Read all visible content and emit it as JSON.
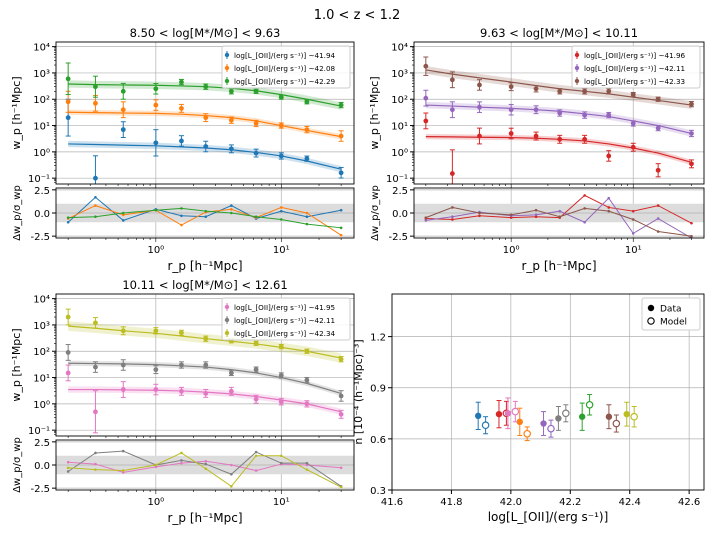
{
  "suptitle": "1.0 < z < 1.2",
  "chart_data": [
    {
      "type": "scatter",
      "title": "8.50 < log[M*/M⊙] < 9.63",
      "xlabel": "r_p [h⁻¹Mpc]",
      "ylabel": "w_p [h⁻¹Mpc]",
      "resid_ylabel": "Δw_p/σ_wp",
      "xscale": "log",
      "yscale": "log",
      "xlim": [
        0.16,
        38
      ],
      "ylim": [
        0.06,
        15000
      ],
      "resid_ylim": [
        -2.7,
        2.7
      ],
      "resid_ticks": [
        -2.5,
        0.0,
        2.5
      ],
      "ytick_labels": [
        "10⁻¹",
        "10⁰",
        "10¹",
        "10²",
        "10³",
        "10⁴"
      ],
      "xtick_labels": [
        "10⁰",
        "10¹"
      ],
      "series": [
        {
          "name": "log[L_[OII]/(erg s⁻¹)] ~41.94",
          "color": "#1f77b4",
          "x": [
            0.2,
            0.33,
            0.55,
            1.0,
            1.6,
            2.5,
            4.0,
            6.3,
            10.0,
            16.0,
            30.0
          ],
          "y": [
            20,
            0.1,
            7,
            2.2,
            2.6,
            1.6,
            1.3,
            0.9,
            0.7,
            0.55,
            0.16
          ],
          "err": [
            0.7,
            0.85,
            0.3,
            0.5,
            0.2,
            0.2,
            0.15,
            0.15,
            0.12,
            0.1,
            0.2
          ],
          "model": [
            2.0,
            1.9,
            1.8,
            1.7,
            1.55,
            1.4,
            1.2,
            0.95,
            0.7,
            0.45,
            0.22
          ],
          "band": 0.12,
          "resid": [
            -1.0,
            1.7,
            -0.8,
            0.4,
            -0.3,
            -0.4,
            0.8,
            -0.6,
            0.2,
            -0.4,
            0.3
          ]
        },
        {
          "name": "log[L_[OII]/(erg s⁻¹)] ~42.08",
          "color": "#ff7f0e",
          "x": [
            0.2,
            0.33,
            0.55,
            1.0,
            1.6,
            2.5,
            4.0,
            6.3,
            10.0,
            16.0,
            30.0
          ],
          "y": [
            80,
            70,
            40,
            60,
            45,
            20,
            16,
            12,
            10,
            7,
            4
          ],
          "err": [
            0.4,
            0.3,
            0.3,
            0.2,
            0.15,
            0.15,
            0.12,
            0.12,
            0.1,
            0.12,
            0.2
          ],
          "model": [
            32,
            31,
            30,
            29,
            27,
            24,
            20,
            15,
            10,
            6.5,
            3.8
          ],
          "band": 0.1,
          "resid": [
            -0.6,
            0.8,
            -0.2,
            0.3,
            -1.3,
            0.1,
            0.4,
            -0.5,
            0.6,
            0.0,
            -2.4
          ]
        },
        {
          "name": "log[L_[OII]/(erg s⁻¹)] ~42.29",
          "color": "#2ca02c",
          "x": [
            0.2,
            0.33,
            0.55,
            1.0,
            1.6,
            2.5,
            4.0,
            6.3,
            10.0,
            16.0,
            30.0
          ],
          "y": [
            600,
            300,
            200,
            250,
            450,
            300,
            200,
            200,
            120,
            80,
            60
          ],
          "err": [
            0.6,
            0.4,
            0.3,
            0.2,
            0.1,
            0.1,
            0.1,
            0.08,
            0.08,
            0.08,
            0.1
          ],
          "model": [
            380,
            360,
            350,
            340,
            320,
            300,
            260,
            210,
            150,
            100,
            55
          ],
          "band": 0.14,
          "resid": [
            -0.5,
            -0.4,
            0.0,
            0.3,
            0.5,
            0.2,
            0.0,
            -0.4,
            -0.7,
            -1.2,
            -1.6
          ]
        }
      ]
    },
    {
      "type": "scatter",
      "title": "9.63 < log[M*/M⊙] < 10.11",
      "xlabel": "r_p [h⁻¹Mpc]",
      "ylabel": "w_p [h⁻¹Mpc]",
      "resid_ylabel": "Δw_p/σ_wp",
      "xscale": "log",
      "yscale": "log",
      "xlim": [
        0.16,
        38
      ],
      "ylim": [
        0.06,
        15000
      ],
      "resid_ylim": [
        -2.7,
        2.7
      ],
      "resid_ticks": [
        -2.5,
        0.0,
        2.5
      ],
      "ytick_labels": [
        "10⁻¹",
        "10⁰",
        "10¹",
        "10²",
        "10³",
        "10⁴"
      ],
      "xtick_labels": [
        "10⁰",
        "10¹"
      ],
      "series": [
        {
          "name": "log[L_[OII]/(erg s⁻¹)] ~41.96",
          "color": "#d62728",
          "x": [
            0.2,
            0.33,
            0.55,
            1.0,
            1.6,
            2.5,
            4.0,
            6.3,
            10.0,
            16.0,
            30.0
          ],
          "y": [
            15,
            0.15,
            4,
            5,
            4,
            3,
            3,
            0.7,
            1.5,
            0.2,
            0.35
          ],
          "err": [
            0.3,
            0.9,
            0.3,
            0.2,
            0.15,
            0.15,
            0.15,
            0.2,
            0.15,
            0.25,
            0.15
          ],
          "model": [
            3.8,
            3.7,
            3.6,
            3.5,
            3.3,
            3.0,
            2.6,
            2.0,
            1.4,
            0.9,
            0.4
          ],
          "band": 0.1,
          "resid": [
            -0.6,
            -0.7,
            -0.3,
            -0.5,
            -0.4,
            -0.5,
            1.9,
            0.6,
            0.2,
            0.8,
            -1.1
          ]
        },
        {
          "name": "log[L_[OII]/(erg s⁻¹)] ~42.11",
          "color": "#9467bd",
          "x": [
            0.2,
            0.33,
            0.55,
            1.0,
            1.6,
            2.5,
            4.0,
            6.3,
            10.0,
            16.0,
            30.0
          ],
          "y": [
            110,
            40,
            50,
            40,
            40,
            30,
            25,
            25,
            12,
            8,
            5
          ],
          "err": [
            0.3,
            0.3,
            0.2,
            0.2,
            0.15,
            0.12,
            0.12,
            0.1,
            0.1,
            0.1,
            0.12
          ],
          "model": [
            60,
            55,
            50,
            45,
            40,
            35,
            28,
            22,
            15,
            10,
            5
          ],
          "band": 0.12,
          "resid": [
            -0.8,
            -0.4,
            0.1,
            -0.3,
            -0.2,
            0.2,
            -1.0,
            1.6,
            -2.2,
            -0.6,
            -2.7
          ]
        },
        {
          "name": "log[L_[OII]/(erg s⁻¹)] ~42.33",
          "color": "#8c564b",
          "x": [
            0.2,
            0.33,
            0.55,
            1.0,
            1.6,
            2.5,
            4.0,
            6.3,
            10.0,
            16.0,
            30.0
          ],
          "y": [
            1800,
            550,
            350,
            300,
            250,
            200,
            200,
            200,
            150,
            100,
            65
          ],
          "err": [
            0.35,
            0.3,
            0.2,
            0.15,
            0.12,
            0.1,
            0.1,
            0.1,
            0.08,
            0.08,
            0.1
          ],
          "model": [
            1300,
            900,
            650,
            450,
            330,
            250,
            200,
            160,
            120,
            90,
            60
          ],
          "band": 0.15,
          "resid": [
            -0.5,
            0.6,
            0.0,
            -0.2,
            0.3,
            -0.4,
            0.5,
            0.2,
            -0.7,
            -2.0,
            -2.5
          ]
        }
      ]
    },
    {
      "type": "scatter",
      "title": "10.11 < log[M*/M⊙] < 12.61",
      "xlabel": "r_p [h⁻¹Mpc]",
      "ylabel": "w_p [h⁻¹Mpc]",
      "resid_ylabel": "Δw_p/σ_wp",
      "xscale": "log",
      "yscale": "log",
      "xlim": [
        0.16,
        38
      ],
      "ylim": [
        0.06,
        15000
      ],
      "resid_ylim": [
        -2.7,
        2.7
      ],
      "resid_ticks": [
        -2.5,
        0.0,
        2.5
      ],
      "ytick_labels": [
        "10⁻¹",
        "10⁰",
        "10¹",
        "10²",
        "10³",
        "10⁴"
      ],
      "xtick_labels": [
        "10⁰",
        "10¹"
      ],
      "series": [
        {
          "name": "log[L_[OII]/(erg s⁻¹)] ~41.95",
          "color": "#e377c2",
          "x": [
            0.2,
            0.33,
            0.55,
            1.0,
            1.6,
            2.5,
            4.0,
            6.3,
            10.0,
            16.0,
            30.0
          ],
          "y": [
            15,
            0.5,
            3.5,
            3.5,
            3.0,
            2.5,
            3.0,
            1.5,
            1.2,
            1.0,
            0.4
          ],
          "err": [
            0.3,
            0.8,
            0.3,
            0.2,
            0.15,
            0.15,
            0.15,
            0.15,
            0.12,
            0.12,
            0.15
          ],
          "model": [
            3.5,
            3.5,
            3.4,
            3.3,
            3.1,
            2.8,
            2.4,
            1.9,
            1.4,
            1.0,
            0.5
          ],
          "band": 0.12,
          "resid": [
            0.3,
            0.1,
            -0.8,
            -0.2,
            0.2,
            0.4,
            0.0,
            -0.6,
            0.1,
            0.0,
            -0.3
          ]
        },
        {
          "name": "log[L_[OII]/(erg s⁻¹)] ~42.11",
          "color": "#7f7f7f",
          "x": [
            0.2,
            0.33,
            0.55,
            1.0,
            1.6,
            2.5,
            4.0,
            6.3,
            10.0,
            16.0,
            30.0
          ],
          "y": [
            90,
            25,
            30,
            20,
            30,
            30,
            15,
            20,
            12,
            8,
            2
          ],
          "err": [
            0.3,
            0.2,
            0.2,
            0.15,
            0.12,
            0.12,
            0.1,
            0.1,
            0.1,
            0.1,
            0.2
          ],
          "model": [
            35,
            34,
            33,
            31,
            28,
            25,
            20,
            15,
            10,
            6,
            2.5
          ],
          "band": 0.1,
          "resid": [
            -0.7,
            1.3,
            1.5,
            0.0,
            0.5,
            0.1,
            -1.0,
            1.4,
            0.2,
            0.2,
            -2.3
          ]
        },
        {
          "name": "log[L_[OII]/(erg s⁻¹)] ~42.34",
          "color": "#bcbd22",
          "x": [
            0.2,
            0.33,
            0.55,
            1.0,
            1.6,
            2.5,
            4.0,
            6.3,
            10.0,
            16.0,
            30.0
          ],
          "y": [
            2000,
            1200,
            600,
            600,
            500,
            300,
            250,
            200,
            150,
            100,
            50
          ],
          "err": [
            0.3,
            0.2,
            0.15,
            0.12,
            0.1,
            0.1,
            0.08,
            0.08,
            0.08,
            0.08,
            0.1
          ],
          "model": [
            900,
            750,
            600,
            480,
            380,
            300,
            240,
            190,
            140,
            100,
            55
          ],
          "band": 0.18,
          "resid": [
            -0.3,
            -0.5,
            -0.6,
            0.0,
            1.3,
            -0.4,
            -2.3,
            1.0,
            1.0,
            -0.5,
            -2.4
          ]
        }
      ]
    },
    {
      "type": "scatter",
      "title": "",
      "xlabel": "log[L_[OII]/(erg s⁻¹)]",
      "ylabel": "n [10⁻⁴ (h⁻¹Mpc)⁻³]",
      "xlim": [
        41.6,
        42.65
      ],
      "ylim": [
        0.3,
        1.45
      ],
      "xticks": [
        41.6,
        41.8,
        42.0,
        42.2,
        42.4,
        42.6
      ],
      "yticks": [
        0.3,
        0.6,
        0.9,
        1.2
      ],
      "legend": [
        {
          "label": "Data",
          "marker": "filled"
        },
        {
          "label": "Model",
          "marker": "open"
        }
      ],
      "legend_position": "top-right",
      "series": [
        {
          "name": "41.94",
          "color": "#1f77b4",
          "x": 41.89,
          "data": 0.735,
          "data_err": 0.08,
          "model": 0.68,
          "model_err": 0.05
        },
        {
          "name": "42.08",
          "color": "#ff7f0e",
          "x": 42.03,
          "data": 0.7,
          "data_err": 0.08,
          "model": 0.63,
          "model_err": 0.04
        },
        {
          "name": "42.29",
          "color": "#2ca02c",
          "x": 42.24,
          "data": 0.73,
          "data_err": 0.08,
          "model": 0.8,
          "model_err": 0.06
        },
        {
          "name": "41.96",
          "color": "#d62728",
          "x": 41.96,
          "data": 0.745,
          "data_err": 0.08,
          "model": 0.75,
          "model_err": 0.07
        },
        {
          "name": "42.11",
          "color": "#9467bd",
          "x": 42.11,
          "data": 0.69,
          "data_err": 0.07,
          "model": 0.66,
          "model_err": 0.05
        },
        {
          "name": "42.33",
          "color": "#8c564b",
          "x": 42.33,
          "data": 0.73,
          "data_err": 0.07,
          "model": 0.69,
          "model_err": 0.05
        },
        {
          "name": "41.95",
          "color": "#e377c2",
          "x": 41.99,
          "data": 0.75,
          "data_err": 0.09,
          "model": 0.76,
          "model_err": 0.06
        },
        {
          "name": "42.11",
          "color": "#7f7f7f",
          "x": 42.16,
          "data": 0.72,
          "data_err": 0.07,
          "model": 0.75,
          "model_err": 0.05
        },
        {
          "name": "42.34",
          "color": "#bcbd22",
          "x": 42.39,
          "data": 0.745,
          "data_err": 0.07,
          "model": 0.73,
          "model_err": 0.06
        }
      ]
    }
  ]
}
